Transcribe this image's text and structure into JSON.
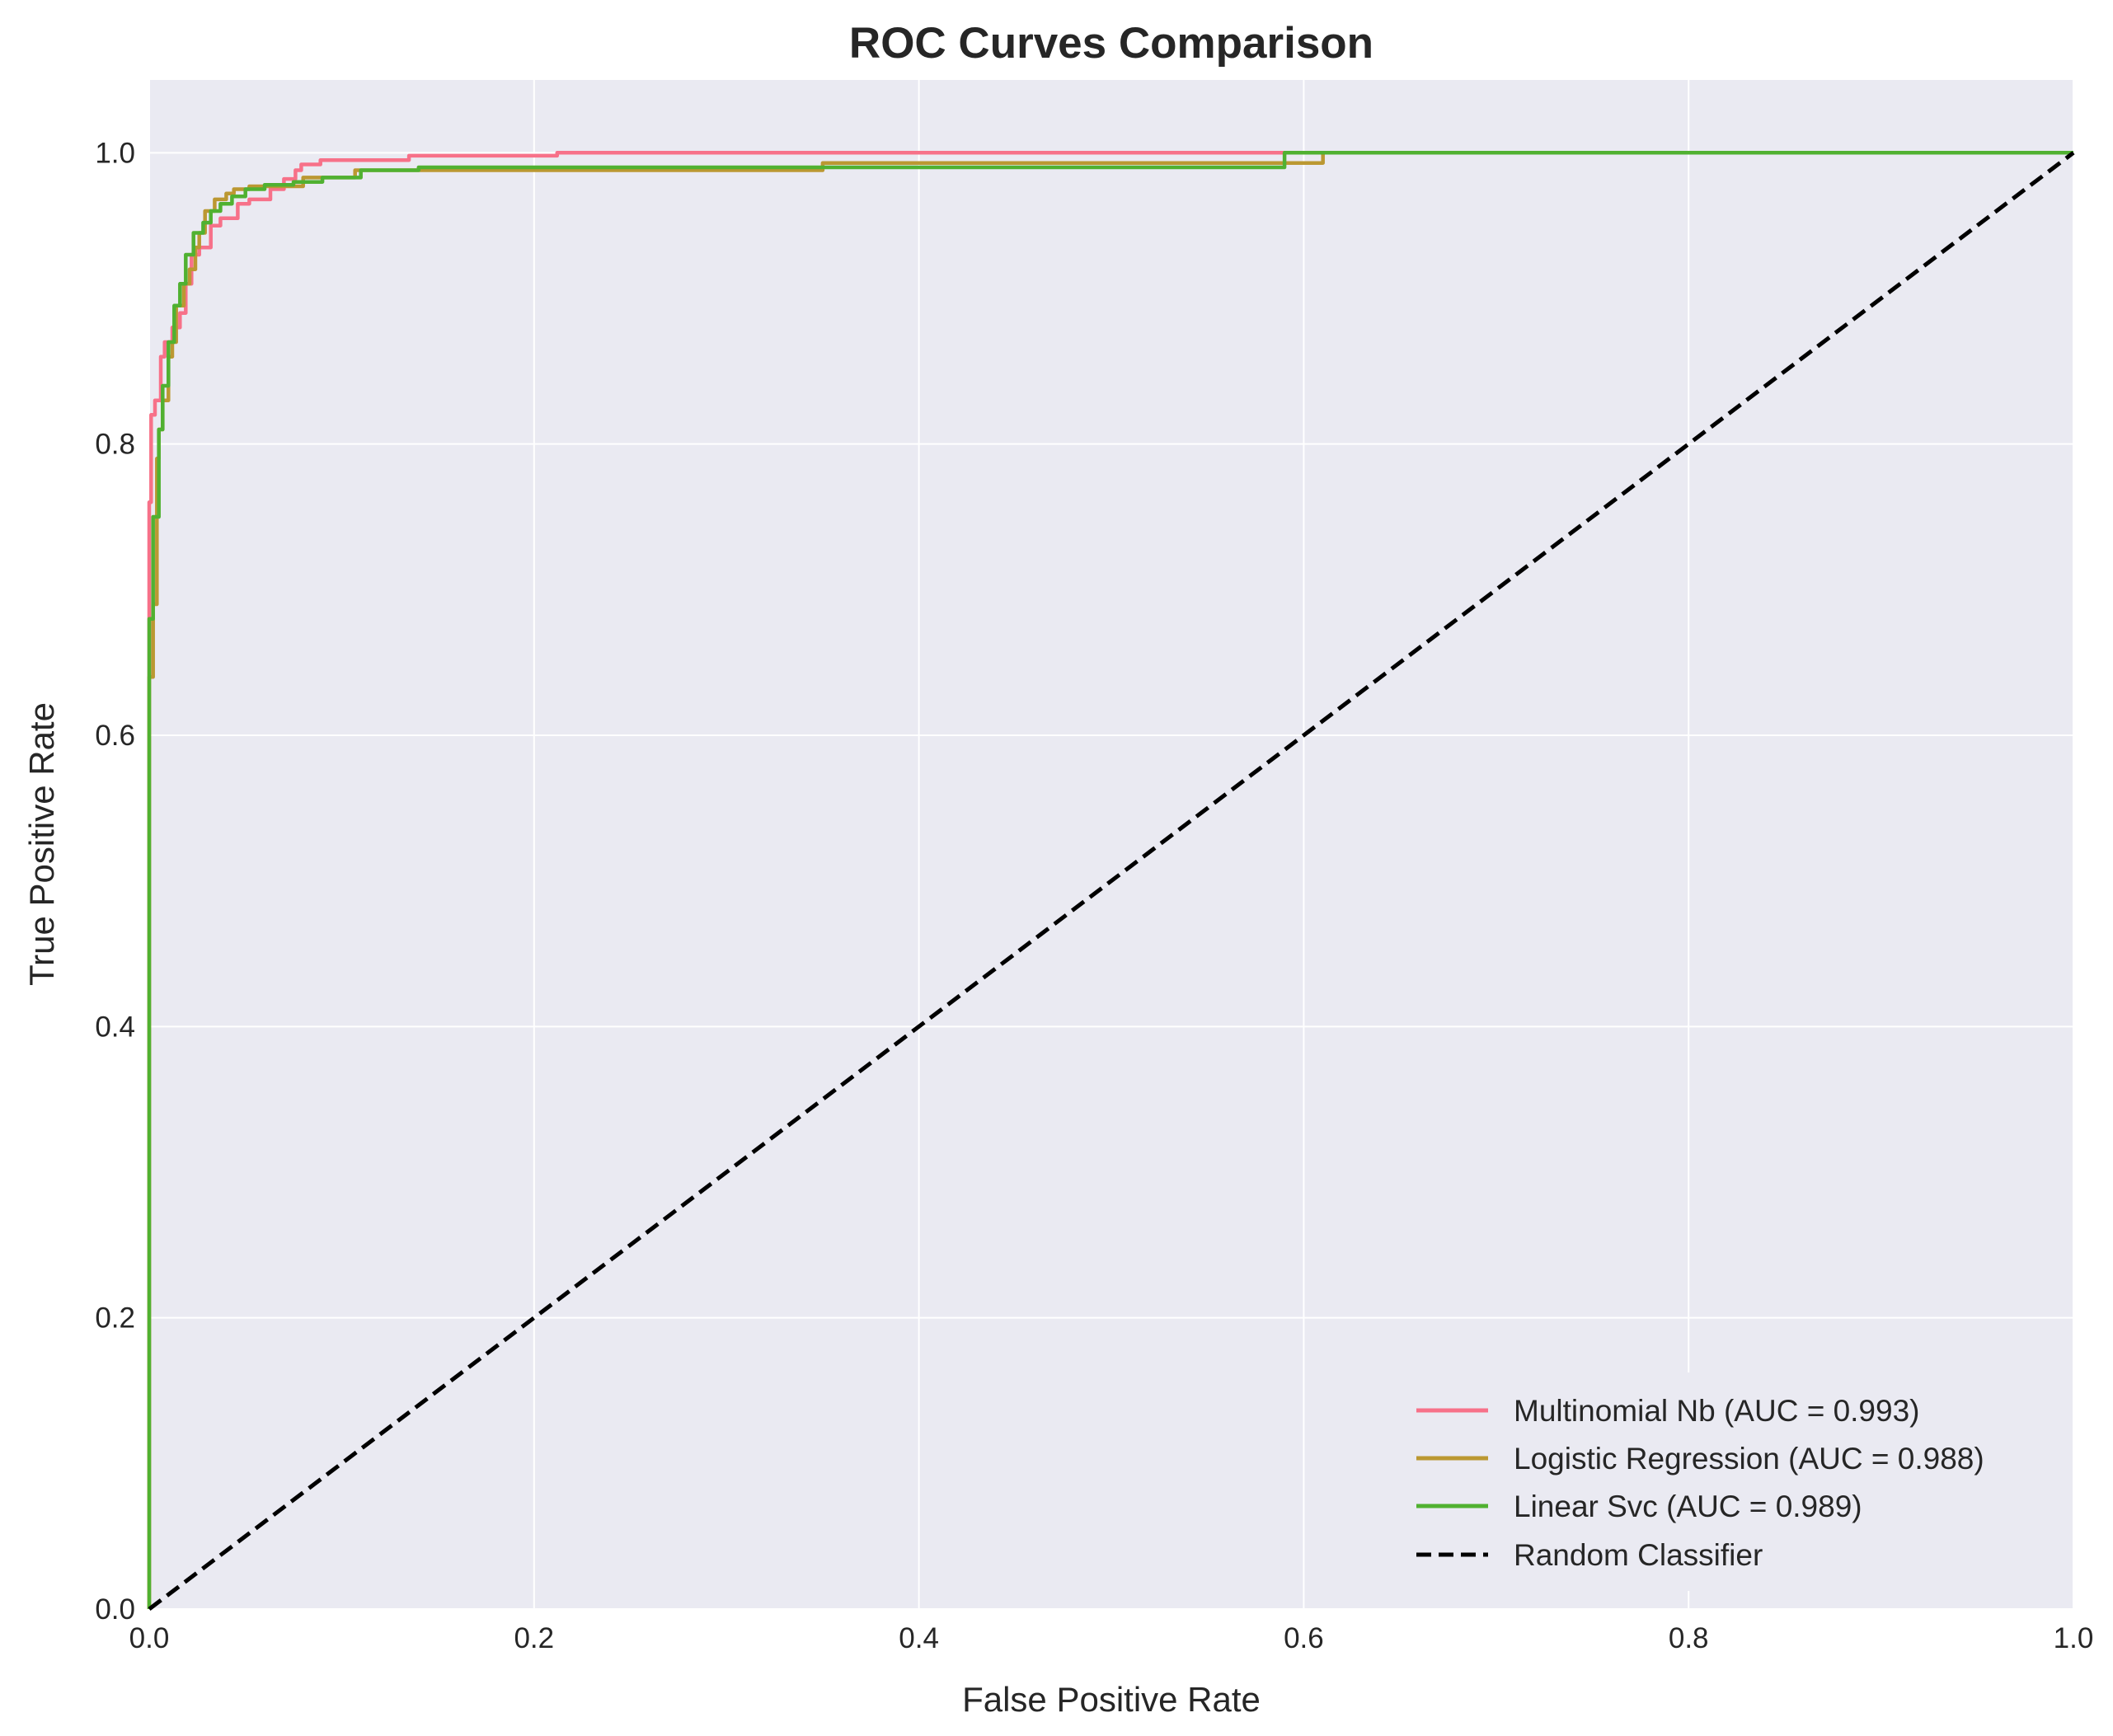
{
  "chart_data": {
    "type": "line",
    "title": "ROC Curves Comparison",
    "xlabel": "False Positive Rate",
    "ylabel": "True Positive Rate",
    "xlim": [
      0.0,
      1.0
    ],
    "ylim": [
      0.0,
      1.05
    ],
    "xticks": [
      "0.0",
      "0.2",
      "0.4",
      "0.6",
      "0.8",
      "1.0"
    ],
    "yticks": [
      "0.0",
      "0.2",
      "0.4",
      "0.6",
      "0.8",
      "1.0"
    ],
    "grid": true,
    "legend_position": "lower-right",
    "background": "#eaeaf2",
    "series": [
      {
        "name": "Multinomial Nb (AUC = 0.993)",
        "color": "#f77189",
        "style": "solid",
        "points": [
          [
            0,
            0
          ],
          [
            0,
            0.6
          ],
          [
            0.001,
            0.76
          ],
          [
            0.003,
            0.82
          ],
          [
            0.006,
            0.83
          ],
          [
            0.008,
            0.86
          ],
          [
            0.012,
            0.87
          ],
          [
            0.016,
            0.88
          ],
          [
            0.019,
            0.89
          ],
          [
            0.022,
            0.91
          ],
          [
            0.026,
            0.93
          ],
          [
            0.032,
            0.935
          ],
          [
            0.037,
            0.95
          ],
          [
            0.046,
            0.955
          ],
          [
            0.052,
            0.965
          ],
          [
            0.063,
            0.968
          ],
          [
            0.07,
            0.975
          ],
          [
            0.076,
            0.982
          ],
          [
            0.079,
            0.988
          ],
          [
            0.089,
            0.992
          ],
          [
            0.135,
            0.995
          ],
          [
            0.212,
            0.998
          ],
          [
            0.347,
            1.0
          ],
          [
            0.95,
            1.0
          ]
        ]
      },
      {
        "name": "Logistic Regression (AUC = 0.988)",
        "color": "#bb9832",
        "style": "solid",
        "points": [
          [
            0,
            0
          ],
          [
            0,
            0.55
          ],
          [
            0.002,
            0.64
          ],
          [
            0.004,
            0.69
          ],
          [
            0.005,
            0.79
          ],
          [
            0.007,
            0.81
          ],
          [
            0.01,
            0.83
          ],
          [
            0.012,
            0.86
          ],
          [
            0.014,
            0.87
          ],
          [
            0.018,
            0.895
          ],
          [
            0.021,
            0.91
          ],
          [
            0.024,
            0.92
          ],
          [
            0.026,
            0.935
          ],
          [
            0.029,
            0.945
          ],
          [
            0.034,
            0.96
          ],
          [
            0.04,
            0.968
          ],
          [
            0.044,
            0.972
          ],
          [
            0.052,
            0.975
          ],
          [
            0.055,
            0.977
          ],
          [
            0.08,
            0.977
          ],
          [
            0.107,
            0.983
          ],
          [
            0.16,
            0.988
          ],
          [
            0.35,
            0.988
          ],
          [
            0.61,
            0.993
          ],
          [
            0.95,
            1.0
          ]
        ]
      },
      {
        "name": "Linear Svc (AUC = 0.989)",
        "color": "#50b131",
        "style": "solid",
        "points": [
          [
            0,
            0
          ],
          [
            0,
            0.63
          ],
          [
            0.002,
            0.68
          ],
          [
            0.005,
            0.75
          ],
          [
            0.007,
            0.81
          ],
          [
            0.01,
            0.84
          ],
          [
            0.013,
            0.87
          ],
          [
            0.016,
            0.895
          ],
          [
            0.019,
            0.91
          ],
          [
            0.023,
            0.93
          ],
          [
            0.028,
            0.945
          ],
          [
            0.032,
            0.952
          ],
          [
            0.037,
            0.96
          ],
          [
            0.043,
            0.965
          ],
          [
            0.05,
            0.97
          ],
          [
            0.06,
            0.975
          ],
          [
            0.075,
            0.978
          ],
          [
            0.09,
            0.98
          ],
          [
            0.11,
            0.983
          ],
          [
            0.14,
            0.988
          ],
          [
            0.15,
            0.99
          ],
          [
            0.59,
            0.99
          ],
          [
            0.59,
            0.997
          ],
          [
            1.0,
            1.0
          ]
        ]
      },
      {
        "name": "Random Classifier",
        "color": "#000000",
        "style": "dashed",
        "points": [
          [
            0,
            0
          ],
          [
            1,
            1
          ]
        ]
      }
    ]
  }
}
